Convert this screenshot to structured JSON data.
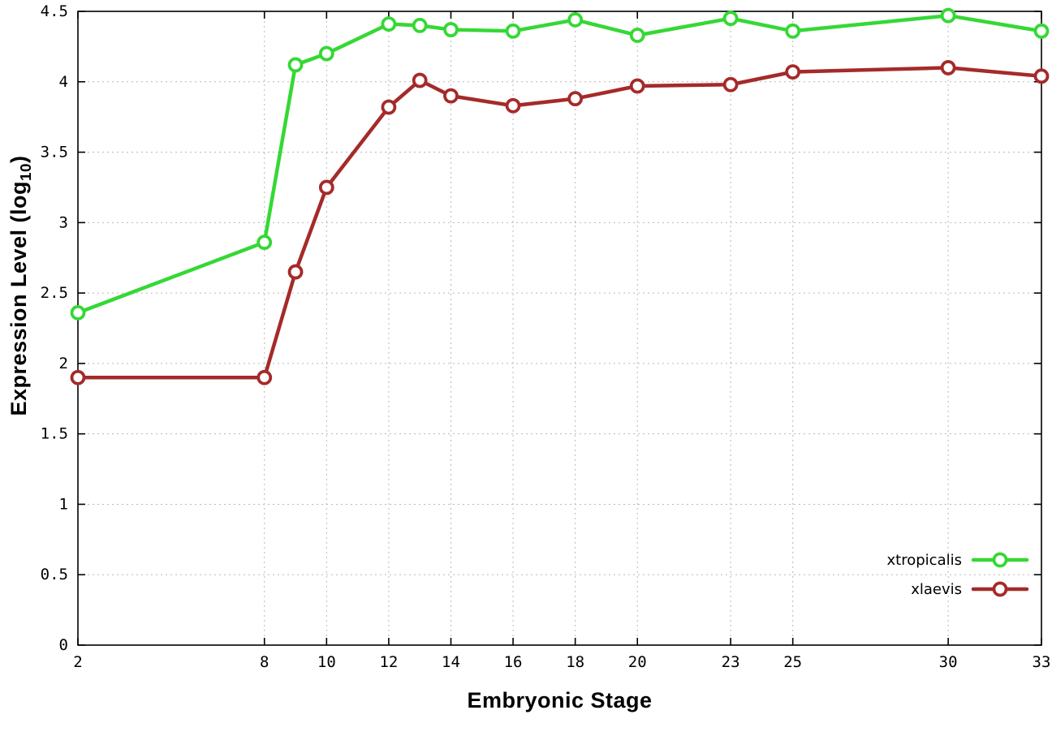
{
  "chart_data": {
    "type": "line",
    "title": "",
    "xlabel": "Embryonic Stage",
    "ylabel": {
      "pre": "Expression Level (log",
      "sub": "10",
      "post": ")"
    },
    "xlim": [
      2,
      33
    ],
    "ylim": [
      0,
      4.5
    ],
    "grid": true,
    "legend_position": "inside bottom right",
    "xticks": [
      {
        "v": 2,
        "label": "2"
      },
      {
        "v": 8,
        "label": "8"
      },
      {
        "v": 10,
        "label": "10"
      },
      {
        "v": 12,
        "label": "12"
      },
      {
        "v": 14,
        "label": "14"
      },
      {
        "v": 16,
        "label": "16"
      },
      {
        "v": 18,
        "label": "18"
      },
      {
        "v": 20,
        "label": "20"
      },
      {
        "v": 23,
        "label": "23"
      },
      {
        "v": 25,
        "label": "25"
      },
      {
        "v": 30,
        "label": "30"
      },
      {
        "v": 33,
        "label": "33"
      }
    ],
    "yticks": [
      {
        "v": 0,
        "label": "0"
      },
      {
        "v": 0.5,
        "label": "0.5"
      },
      {
        "v": 1,
        "label": "1"
      },
      {
        "v": 1.5,
        "label": "1.5"
      },
      {
        "v": 2,
        "label": "2"
      },
      {
        "v": 2.5,
        "label": "2.5"
      },
      {
        "v": 3,
        "label": "3"
      },
      {
        "v": 3.5,
        "label": "3.5"
      },
      {
        "v": 4,
        "label": "4"
      },
      {
        "v": 4.5,
        "label": "4.5"
      }
    ],
    "x": [
      2,
      8,
      9,
      10,
      12,
      13,
      14,
      16,
      18,
      20,
      23,
      25,
      30,
      33
    ],
    "series": [
      {
        "name": "xtropicalis",
        "color": "#35d835",
        "values": [
          2.36,
          2.86,
          4.12,
          4.2,
          4.41,
          4.4,
          4.37,
          4.36,
          4.44,
          4.33,
          4.45,
          4.36,
          4.47,
          4.36
        ]
      },
      {
        "name": "xlaevis",
        "color": "#a52a2a",
        "values": [
          1.9,
          1.9,
          2.65,
          3.25,
          3.82,
          4.01,
          3.9,
          3.83,
          3.88,
          3.97,
          3.98,
          4.07,
          4.1,
          4.04
        ]
      }
    ],
    "colors": {
      "grid": "#b8b8b8",
      "axis": "#000000",
      "background": "#ffffff"
    }
  }
}
